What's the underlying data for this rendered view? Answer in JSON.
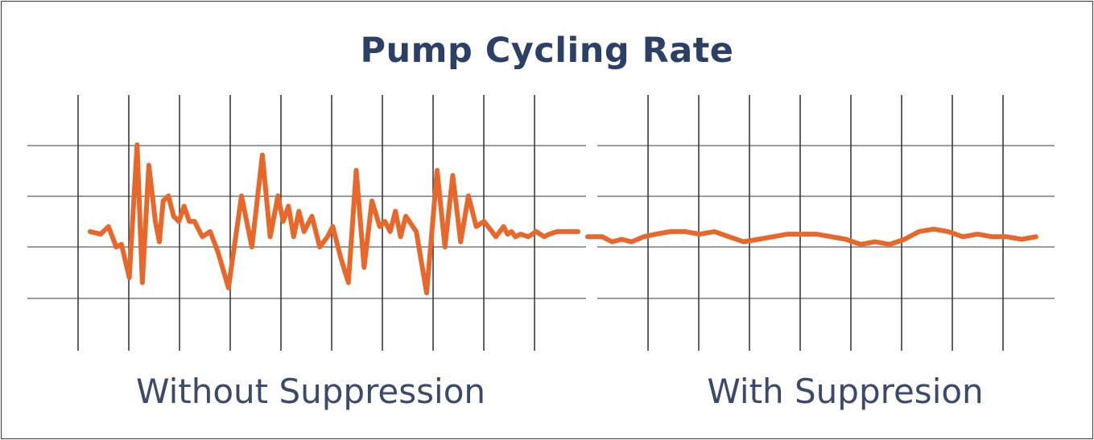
{
  "title": "Pump Cycling Rate",
  "colors": {
    "line": "#e8672a",
    "grid_vertical": "#2e2e2e",
    "grid_horizontal": "#9a9a9a",
    "title": "#2c4065",
    "label": "#3b4a6b"
  },
  "chart_data": [
    {
      "type": "line",
      "title": "",
      "xlabel": "Without Suppression",
      "ylabel": "",
      "grid": true,
      "xlim": [
        0,
        20
      ],
      "ylim": [
        -2,
        4
      ],
      "series": [
        {
          "x": [
            0,
            0.4,
            0.7,
            1.0,
            1.2,
            1.5,
            1.8,
            2.0,
            2.25,
            2.5,
            2.65,
            2.8,
            3.0,
            3.2,
            3.4,
            3.6,
            3.8,
            4.0,
            4.3,
            4.6,
            4.9,
            5.3,
            5.8,
            6.2,
            6.6,
            6.9,
            7.2,
            7.4,
            7.6,
            7.8,
            8.0,
            8.2,
            8.5,
            8.8,
            9.1,
            9.3,
            9.6,
            9.9,
            10.2,
            10.5,
            10.8,
            11.1,
            11.3,
            11.5,
            11.7,
            11.9,
            12.1,
            12.5,
            12.9,
            13.3,
            13.6,
            13.9,
            14.2,
            14.5,
            14.8,
            15.1,
            15.4,
            15.55,
            15.7,
            15.85,
            16.0,
            16.15,
            16.3,
            16.5,
            16.8,
            17.1,
            17.4,
            17.6,
            17.9,
            18.3,
            18.7
          ],
          "y": [
            0.3,
            0.25,
            0.4,
            0.0,
            0.05,
            -0.6,
            2.0,
            -0.7,
            1.6,
            0.5,
            0.1,
            0.9,
            1.0,
            0.6,
            0.5,
            0.8,
            0.5,
            0.5,
            0.2,
            0.3,
            -0.1,
            -0.8,
            1.0,
            0.0,
            1.8,
            0.2,
            1.0,
            0.5,
            0.8,
            0.2,
            0.7,
            0.3,
            0.6,
            0.0,
            0.2,
            0.4,
            -0.2,
            -0.7,
            1.5,
            -0.4,
            0.9,
            0.4,
            0.5,
            0.3,
            0.7,
            0.2,
            0.6,
            0.3,
            -0.9,
            1.5,
            0.0,
            1.4,
            0.1,
            1.0,
            0.4,
            0.5,
            0.3,
            0.2,
            0.3,
            0.4,
            0.25,
            0.3,
            0.2,
            0.25,
            0.2,
            0.3,
            0.2,
            0.25,
            0.3,
            0.3,
            0.3
          ]
        }
      ]
    },
    {
      "type": "line",
      "title": "",
      "xlabel": "With Suppresion",
      "ylabel": "",
      "grid": true,
      "xlim": [
        0,
        20
      ],
      "ylim": [
        -2,
        4
      ],
      "series": [
        {
          "x": [
            0,
            0.6,
            1.0,
            1.4,
            1.8,
            2.3,
            2.8,
            3.4,
            4.0,
            4.6,
            5.2,
            5.8,
            6.4,
            7.0,
            7.6,
            8.2,
            8.8,
            9.4,
            10.0,
            10.6,
            11.2,
            11.8,
            12.4,
            13.0,
            13.6,
            14.2,
            14.8,
            15.4,
            16.0,
            16.6,
            17.2,
            17.8,
            18.4
          ],
          "y": [
            0.2,
            0.2,
            0.1,
            0.15,
            0.1,
            0.2,
            0.25,
            0.3,
            0.3,
            0.25,
            0.3,
            0.2,
            0.1,
            0.15,
            0.2,
            0.25,
            0.25,
            0.25,
            0.2,
            0.15,
            0.05,
            0.1,
            0.05,
            0.15,
            0.3,
            0.35,
            0.3,
            0.2,
            0.25,
            0.2,
            0.2,
            0.15,
            0.2
          ]
        }
      ]
    }
  ],
  "labels": {
    "without": "Without Suppression",
    "with": "With Suppresion"
  }
}
